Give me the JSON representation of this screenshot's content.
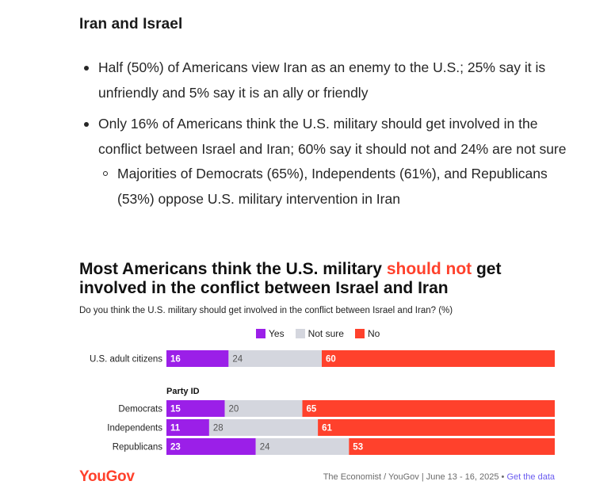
{
  "section": {
    "title": "Iran and Israel",
    "bullets": [
      {
        "text": "Half (50%) of Americans view Iran as an enemy to the U.S.; 25% say it is unfriendly and 5% say it is an ally or friendly",
        "subitems": []
      },
      {
        "text": "Only 16% of Americans think the U.S. military should get involved in the conflict between Israel and Iran; 60% say it should not and 24% are not sure",
        "subitems": [
          "Majorities of Democrats (65%), Independents (61%), and Republicans (53%) oppose U.S. military intervention in Iran"
        ]
      }
    ]
  },
  "chart_title": {
    "before": "Most Americans think the U.S. military ",
    "highlight": "should not",
    "after": " get involved in the conflict between Israel and Iran"
  },
  "chart_data": {
    "type": "bar",
    "orientation": "horizontal",
    "stacked": true,
    "subtitle": "Do you think the U.S. military should get involved in the conflict between Israel and Iran? (%)",
    "group_label": "Party ID",
    "categories": [
      "U.S. adult citizens",
      "Democrats",
      "Independents",
      "Republicans"
    ],
    "series": [
      {
        "name": "Yes",
        "color": "#9b1fe8",
        "values": [
          16,
          15,
          11,
          23
        ]
      },
      {
        "name": "Not sure",
        "color": "#d4d6de",
        "values": [
          24,
          20,
          28,
          24
        ]
      },
      {
        "name": "No",
        "color": "#ff412c",
        "values": [
          60,
          65,
          61,
          53
        ]
      }
    ],
    "legend_position": "top",
    "grid": false
  },
  "footer": {
    "logo": "YouGov",
    "source": "The Economist / YouGov | June 13 - 16, 2025 • ",
    "link": "Get the data"
  }
}
